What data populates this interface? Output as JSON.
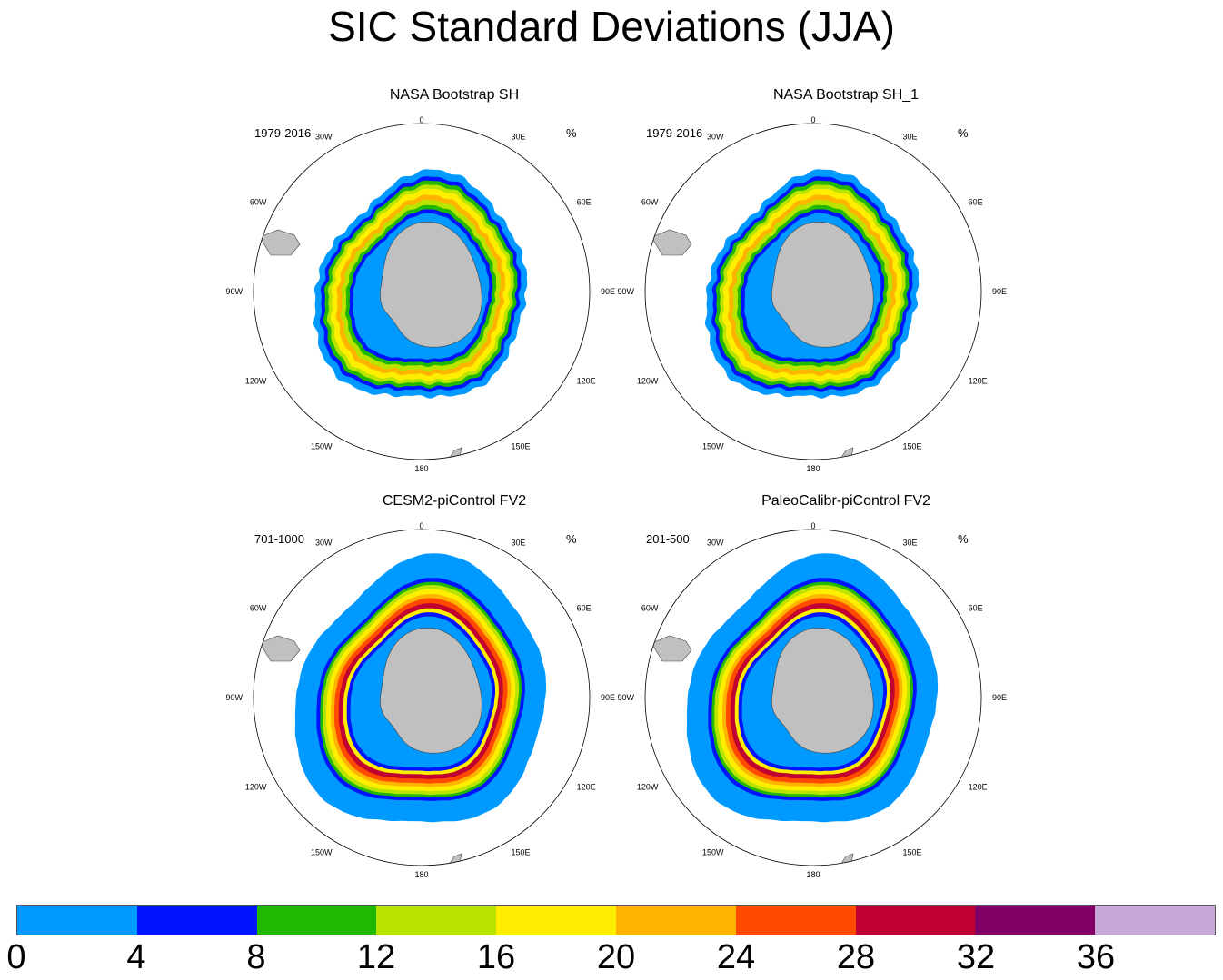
{
  "title": "SIC Standard Deviations (JJA)",
  "panels": [
    {
      "title": "NASA Bootstrap SH",
      "period": "1979-2016",
      "units": "%"
    },
    {
      "title": "NASA Bootstrap SH_1",
      "period": "1979-2016",
      "units": "%"
    },
    {
      "title": "CESM2-piControl FV2",
      "period": "701-1000",
      "units": "%"
    },
    {
      "title": "PaleoCalibr-piControl FV2",
      "period": "201-500",
      "units": "%"
    }
  ],
  "longitude_labels": {
    "top": "0",
    "ne1": "30E",
    "ne2": "60E",
    "right": "90E",
    "se1": "120E",
    "se2": "150E",
    "bottom": "180",
    "sw1": "150W",
    "sw2": "120W",
    "left": "90W",
    "nw1": "60W",
    "nw2": "30W"
  },
  "colorbar": {
    "labels": [
      "0",
      "4",
      "8",
      "12",
      "16",
      "20",
      "24",
      "28",
      "32",
      "36"
    ],
    "colors": [
      "#0099ff",
      "#0014ff",
      "#20b800",
      "#b8e400",
      "#ffee00",
      "#ffb400",
      "#ff4a00",
      "#c00030",
      "#820066",
      "#c8a8d8"
    ]
  }
}
